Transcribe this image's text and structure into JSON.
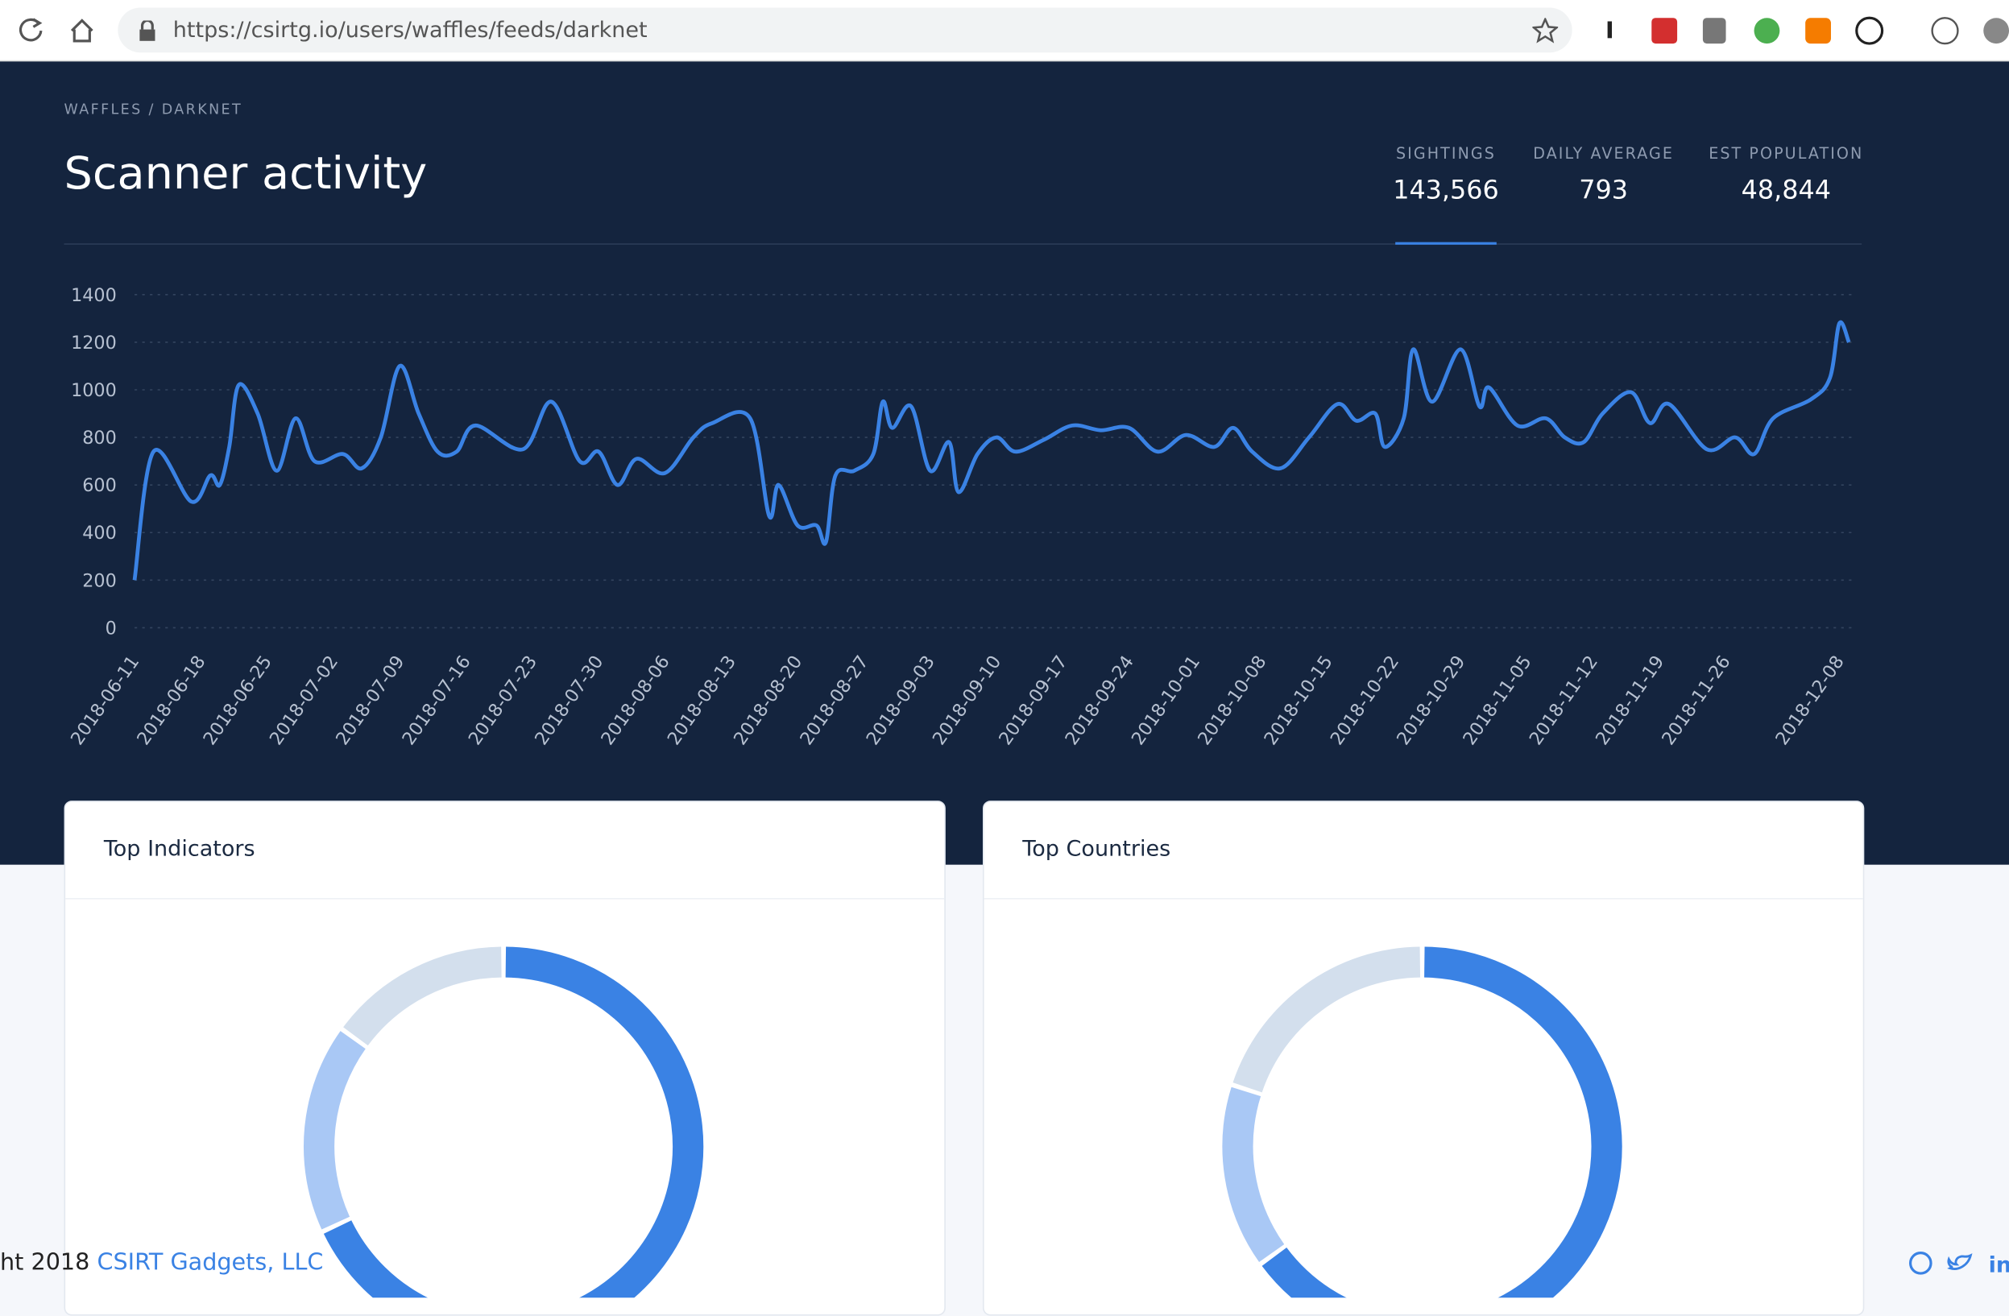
{
  "browser": {
    "url": "https://csirtg.io/users/waffles/feeds/darknet"
  },
  "breadcrumb": "WAFFLES / DARKNET",
  "stats": [
    {
      "label": "SIGHTINGS",
      "value": "143,566"
    },
    {
      "label": "DAILY AVERAGE",
      "value": "793"
    },
    {
      "label": "EST POPULATION",
      "value": "48,844"
    }
  ],
  "footer": {
    "text": "ht 2018",
    "link": "CSIRT Gadgets, LLC"
  },
  "chart_data": [
    {
      "type": "line",
      "title": "Scanner activity",
      "color": "#3a82e4",
      "grid": true,
      "x": [
        "2018-06-11",
        "2018-06-13",
        "2018-06-17",
        "2018-06-19",
        "2018-06-20",
        "2018-06-21",
        "2018-06-22",
        "2018-06-24",
        "2018-06-26",
        "2018-06-28",
        "2018-06-30",
        "2018-07-03",
        "2018-07-05",
        "2018-07-07",
        "2018-07-09",
        "2018-07-11",
        "2018-07-13",
        "2018-07-15",
        "2018-07-17",
        "2018-07-22",
        "2018-07-25",
        "2018-07-28",
        "2018-07-30",
        "2018-08-01",
        "2018-08-03",
        "2018-08-06",
        "2018-08-09",
        "2018-08-11",
        "2018-08-15",
        "2018-08-17",
        "2018-08-18",
        "2018-08-20",
        "2018-08-22",
        "2018-08-23",
        "2018-08-24",
        "2018-08-26",
        "2018-08-28",
        "2018-08-29",
        "2018-08-30",
        "2018-09-01",
        "2018-09-03",
        "2018-09-05",
        "2018-09-06",
        "2018-09-08",
        "2018-09-10",
        "2018-09-12",
        "2018-09-15",
        "2018-09-18",
        "2018-09-21",
        "2018-09-24",
        "2018-09-27",
        "2018-09-30",
        "2018-10-03",
        "2018-10-05",
        "2018-10-07",
        "2018-10-10",
        "2018-10-13",
        "2018-10-16",
        "2018-10-18",
        "2018-10-20",
        "2018-10-21",
        "2018-10-23",
        "2018-10-24",
        "2018-10-26",
        "2018-10-29",
        "2018-10-31",
        "2018-11-01",
        "2018-11-04",
        "2018-11-07",
        "2018-11-09",
        "2018-11-11",
        "2018-11-13",
        "2018-11-16",
        "2018-11-18",
        "2018-11-20",
        "2018-11-24",
        "2018-11-27",
        "2018-11-29",
        "2018-12-01",
        "2018-12-05",
        "2018-12-07",
        "2018-12-08",
        "2018-12-09"
      ],
      "values": [
        200,
        740,
        530,
        640,
        600,
        760,
        1020,
        900,
        660,
        880,
        700,
        730,
        670,
        800,
        1100,
        900,
        740,
        740,
        850,
        750,
        950,
        700,
        740,
        600,
        710,
        650,
        800,
        860,
        880,
        470,
        600,
        430,
        430,
        360,
        640,
        660,
        730,
        950,
        840,
        930,
        660,
        780,
        570,
        730,
        800,
        740,
        790,
        850,
        830,
        840,
        740,
        810,
        760,
        840,
        740,
        670,
        800,
        940,
        870,
        900,
        760,
        880,
        1170,
        950,
        1170,
        930,
        1010,
        850,
        880,
        800,
        780,
        900,
        990,
        860,
        940,
        750,
        800,
        730,
        880,
        960,
        1050,
        1280,
        1200
      ],
      "xlim": [
        "2018-06-11",
        "2018-12-09"
      ],
      "xticks": [
        "2018-06-11",
        "2018-06-18",
        "2018-06-25",
        "2018-07-02",
        "2018-07-09",
        "2018-07-16",
        "2018-07-23",
        "2018-07-30",
        "2018-08-06",
        "2018-08-13",
        "2018-08-20",
        "2018-08-27",
        "2018-09-03",
        "2018-09-10",
        "2018-09-17",
        "2018-09-24",
        "2018-10-01",
        "2018-10-08",
        "2018-10-15",
        "2018-10-22",
        "2018-10-29",
        "2018-11-05",
        "2018-11-12",
        "2018-11-19",
        "2018-11-26",
        "2018-12-08"
      ],
      "ylim": [
        0,
        1400
      ],
      "yticks": [
        0,
        200,
        400,
        600,
        800,
        1000,
        1200,
        1400
      ]
    },
    {
      "type": "pie",
      "title": "Top Indicators",
      "values": [
        68,
        17,
        15
      ],
      "colors": [
        "#3a82e4",
        "#a9c8f5",
        "#d3dfed"
      ]
    },
    {
      "type": "pie",
      "title": "Top Countries",
      "values": [
        65,
        15,
        20
      ],
      "colors": [
        "#3a82e4",
        "#a9c8f5",
        "#d3dfed"
      ]
    }
  ]
}
